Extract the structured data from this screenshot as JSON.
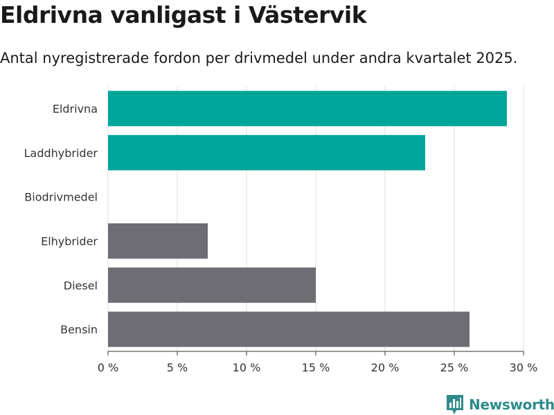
{
  "header": {
    "title": "Eldrivna vanligast i Västervik",
    "subtitle": "Antal nyregistrerade fordon per drivmedel under andra kvartalet 2025."
  },
  "brand": {
    "name": "Newsworthy",
    "icon": "newsworthy-logo-icon"
  },
  "colors": {
    "highlight": "#00a599",
    "base": "#6e6d73",
    "grid": "#dddddd"
  },
  "chart_data": {
    "type": "bar",
    "orientation": "horizontal",
    "categories": [
      "Eldrivna",
      "Laddhybrider",
      "Biodrivmedel",
      "Elhybrider",
      "Diesel",
      "Bensin"
    ],
    "values": [
      28.8,
      22.9,
      0,
      7.2,
      15.0,
      26.1
    ],
    "highlighted": [
      true,
      true,
      false,
      false,
      false,
      false
    ],
    "xlim": [
      0,
      30
    ],
    "xticks": [
      0,
      5,
      10,
      15,
      20,
      25,
      30
    ],
    "xtick_labels": [
      "0 %",
      "5 %",
      "10 %",
      "15 %",
      "20 %",
      "25 %",
      "30 %"
    ],
    "grid": true,
    "title": "Eldrivna vanligast i Västervik"
  }
}
